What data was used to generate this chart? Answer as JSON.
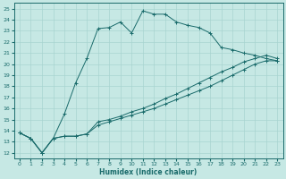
{
  "xlabel": "Humidex (Indice chaleur)",
  "ylabel": "",
  "xlim": [
    -0.5,
    23.5
  ],
  "ylim": [
    11.5,
    25.5
  ],
  "xticks": [
    0,
    1,
    2,
    3,
    4,
    5,
    6,
    7,
    8,
    9,
    10,
    11,
    12,
    13,
    14,
    15,
    16,
    17,
    18,
    19,
    20,
    21,
    22,
    23
  ],
  "yticks": [
    12,
    13,
    14,
    15,
    16,
    17,
    18,
    19,
    20,
    21,
    22,
    23,
    24,
    25
  ],
  "bg_color": "#c6e8e4",
  "line_color": "#1a6b6b",
  "grid_color": "#a8d4d0",
  "lines": [
    {
      "x": [
        0,
        1,
        2,
        3,
        4,
        5,
        6,
        7,
        8,
        9,
        10,
        11,
        12,
        13,
        14,
        15,
        16,
        17,
        18,
        19,
        20,
        21,
        22,
        23
      ],
      "y": [
        13.8,
        13.3,
        12.0,
        13.3,
        15.5,
        18.3,
        20.5,
        23.2,
        23.3,
        23.8,
        22.8,
        24.8,
        24.5,
        24.5,
        23.8,
        23.5,
        23.3,
        22.8,
        21.5,
        21.3,
        21.0,
        20.8,
        20.5,
        20.3
      ]
    },
    {
      "x": [
        0,
        1,
        2,
        3,
        4,
        5,
        6,
        7,
        8,
        9,
        10,
        11,
        12,
        13,
        14,
        15,
        16,
        17,
        18,
        19,
        20,
        21,
        22,
        23
      ],
      "y": [
        13.8,
        13.3,
        12.0,
        13.3,
        13.5,
        13.5,
        13.7,
        14.8,
        15.0,
        15.3,
        15.7,
        16.0,
        16.4,
        16.9,
        17.3,
        17.8,
        18.3,
        18.8,
        19.3,
        19.7,
        20.2,
        20.5,
        20.8,
        20.5
      ]
    },
    {
      "x": [
        0,
        1,
        2,
        3,
        4,
        5,
        6,
        7,
        8,
        9,
        10,
        11,
        12,
        13,
        14,
        15,
        16,
        17,
        18,
        19,
        20,
        21,
        22,
        23
      ],
      "y": [
        13.8,
        13.3,
        12.0,
        13.3,
        13.5,
        13.5,
        13.7,
        14.5,
        14.8,
        15.1,
        15.4,
        15.7,
        16.0,
        16.4,
        16.8,
        17.2,
        17.6,
        18.0,
        18.5,
        19.0,
        19.5,
        20.0,
        20.3,
        20.3
      ]
    }
  ]
}
